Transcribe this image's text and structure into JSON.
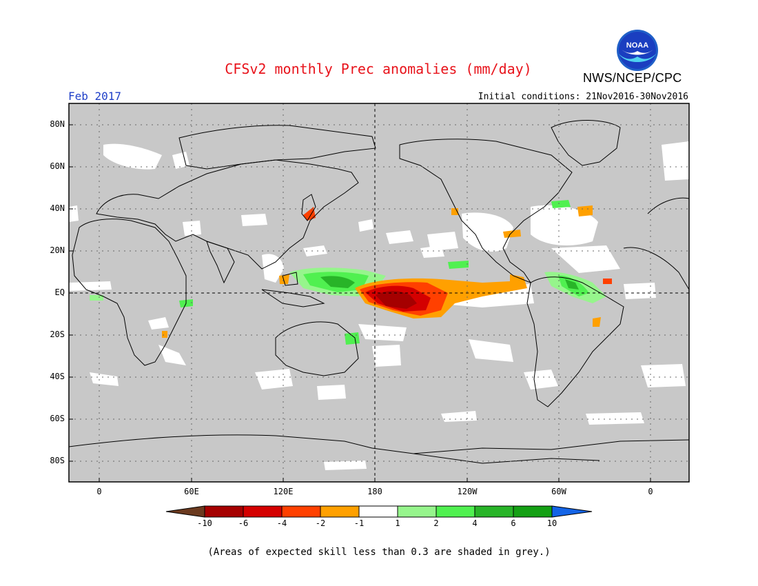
{
  "header": {
    "title": "CFSv2 monthly Prec anomalies (mm/day)",
    "agency": "NWS/NCEP/CPC",
    "logo_text": "NOAA",
    "month": "Feb 2017",
    "initial_conditions": "Initial conditions: 21Nov2016-30Nov2016"
  },
  "axes": {
    "lat_labels": [
      "80N",
      "60N",
      "40N",
      "20N",
      "EQ",
      "20S",
      "40S",
      "60S",
      "80S"
    ],
    "lon_labels": [
      "0",
      "60E",
      "120E",
      "180",
      "120W",
      "60W",
      "0"
    ]
  },
  "colorbar": {
    "labels": [
      "-10",
      "-6",
      "-4",
      "-2",
      "-1",
      "1",
      "2",
      "4",
      "6",
      "10"
    ],
    "colors": [
      "#6b3a1f",
      "#a50000",
      "#d40000",
      "#ff4000",
      "#ffa000",
      "#ffffff",
      "#96f58c",
      "#50f050",
      "#28b428",
      "#14a014",
      "#1464e6"
    ]
  },
  "colors": {
    "no_skill_grey": "#c8c8c8",
    "title_red": "#e8131b",
    "month_blue": "#1f3fc8"
  },
  "footnote": "(Areas of expected skill less than 0.3 are shaded in grey.)"
}
